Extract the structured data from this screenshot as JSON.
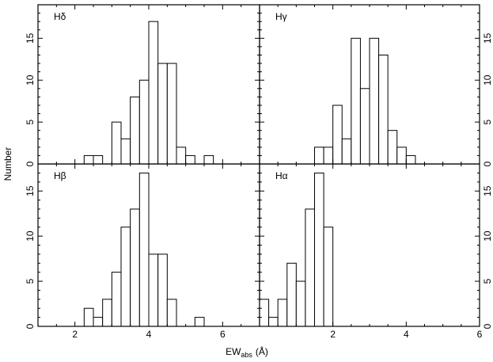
{
  "chart_data": {
    "type": "bar",
    "ylabel": "Number",
    "xlabel": "EW",
    "xlabel_sub": "abs",
    "xlabel_unit": "(Å)",
    "bin_width": 0.25,
    "panels": [
      {
        "label": "Hδ",
        "xlim": [
          1,
          7
        ],
        "ylim": [
          0,
          19
        ],
        "xticks": [
          2,
          4,
          6
        ],
        "yticks": [
          0,
          5,
          10,
          15
        ],
        "bin_starts": [
          2.25,
          2.5,
          3.0,
          3.25,
          3.5,
          3.75,
          4.0,
          4.25,
          4.5,
          4.75,
          5.0,
          5.5
        ],
        "values": [
          1,
          1,
          5,
          3,
          8,
          10,
          17,
          12,
          12,
          2,
          1,
          1
        ]
      },
      {
        "label": "Hγ",
        "xlim": [
          0,
          6
        ],
        "ylim": [
          0,
          19
        ],
        "xticks": [
          2,
          4,
          6
        ],
        "yticks": [
          0,
          5,
          10,
          15
        ],
        "bin_starts": [
          1.5,
          1.75,
          2.0,
          2.25,
          2.5,
          2.75,
          3.0,
          3.25,
          3.5,
          3.75,
          4.0
        ],
        "values": [
          2,
          2,
          7,
          3,
          15,
          9,
          15,
          13,
          4,
          2,
          1
        ]
      },
      {
        "label": "Hβ",
        "xlim": [
          1,
          7
        ],
        "ylim": [
          0,
          18
        ],
        "xticks": [
          2,
          4,
          6
        ],
        "yticks": [
          0,
          5,
          10,
          15
        ],
        "bin_starts": [
          2.25,
          2.5,
          2.75,
          3.0,
          3.25,
          3.5,
          3.75,
          4.0,
          4.25,
          4.5,
          4.75,
          5.25
        ],
        "values": [
          2,
          1,
          3,
          6,
          11,
          13,
          17,
          8,
          8,
          3,
          0,
          1
        ]
      },
      {
        "label": "Hα",
        "xlim": [
          0,
          6
        ],
        "ylim": [
          0,
          18
        ],
        "xticks": [
          2,
          4,
          6
        ],
        "yticks": [
          0,
          5,
          10,
          15
        ],
        "bin_starts": [
          0.0,
          0.25,
          0.5,
          0.75,
          1.0,
          1.25,
          1.5,
          1.75
        ],
        "values": [
          3,
          1,
          3,
          7,
          5,
          13,
          17,
          11
        ]
      }
    ]
  }
}
